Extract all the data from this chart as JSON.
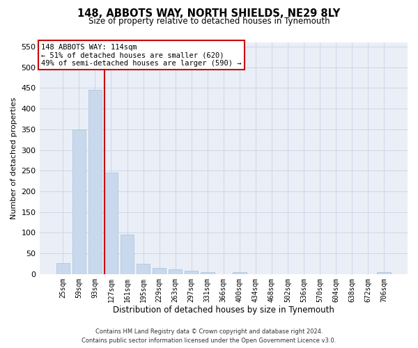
{
  "title": "148, ABBOTS WAY, NORTH SHIELDS, NE29 8LY",
  "subtitle": "Size of property relative to detached houses in Tynemouth",
  "xlabel": "Distribution of detached houses by size in Tynemouth",
  "ylabel": "Number of detached properties",
  "bar_color": "#c8d9ed",
  "bar_edge_color": "#a8c0d8",
  "background_color": "#ffffff",
  "plot_bg_color": "#eaeff7",
  "grid_color": "#cdd6e8",
  "categories": [
    "25sqm",
    "59sqm",
    "93sqm",
    "127sqm",
    "161sqm",
    "195sqm",
    "229sqm",
    "263sqm",
    "297sqm",
    "331sqm",
    "366sqm",
    "400sqm",
    "434sqm",
    "468sqm",
    "502sqm",
    "536sqm",
    "570sqm",
    "604sqm",
    "638sqm",
    "672sqm",
    "706sqm"
  ],
  "values": [
    27,
    350,
    445,
    245,
    95,
    25,
    15,
    12,
    8,
    5,
    0,
    4,
    0,
    0,
    0,
    0,
    0,
    0,
    0,
    0,
    4
  ],
  "ylim": [
    0,
    560
  ],
  "yticks": [
    0,
    50,
    100,
    150,
    200,
    250,
    300,
    350,
    400,
    450,
    500,
    550
  ],
  "vline_color": "#cc0000",
  "vline_position": 2.575,
  "annotation_line1": "148 ABBOTS WAY: 114sqm",
  "annotation_line2": "← 51% of detached houses are smaller (620)",
  "annotation_line3": "49% of semi-detached houses are larger (590) →",
  "annotation_box_facecolor": "#ffffff",
  "annotation_box_edgecolor": "#cc0000",
  "footer_line1": "Contains HM Land Registry data © Crown copyright and database right 2024.",
  "footer_line2": "Contains public sector information licensed under the Open Government Licence v3.0."
}
